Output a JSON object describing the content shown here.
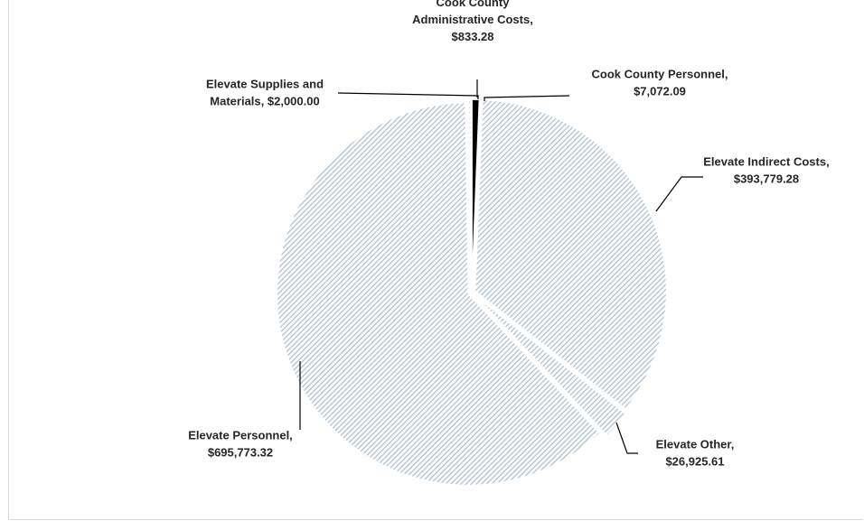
{
  "chart_data": {
    "type": "pie",
    "title": "",
    "slices": [
      {
        "label": "Cook County  Personnel",
        "value": 7072.09,
        "value_text": "$7,072.09",
        "color": "#000000"
      },
      {
        "label": "Elevate Indirect Costs",
        "value": 393779.28,
        "value_text": "$393,779.28",
        "color": "#a9bccd"
      },
      {
        "label": "Elevate Other",
        "value": 26925.61,
        "value_text": "$26,925.61",
        "color": "#a9bccd"
      },
      {
        "label": "Elevate Personnel",
        "value": 695773.32,
        "value_text": "$695,773.32",
        "color": "#a9bccd"
      },
      {
        "label": "Elevate Supplies and Materials",
        "value": 2000.0,
        "value_text": "$2,000.00",
        "color": "#a9bccd"
      },
      {
        "label": "Cook County Administrative Costs",
        "value": 833.28,
        "value_text": "$833.28",
        "color": "#000000"
      }
    ],
    "legend": "none",
    "pattern": "diagonal-hatch",
    "label_lines": [
      [
        "Cook County  Personnel,",
        "$7,072.09"
      ],
      [
        "Elevate Indirect Costs,",
        "$393,779.28"
      ],
      [
        "Elevate Other,",
        "$26,925.61"
      ],
      [
        "Elevate Personnel,",
        "$695,773.32"
      ],
      [
        "Elevate Supplies and",
        "Materials,  $2,000.00"
      ],
      [
        "Cook County",
        "Administrative Costs,",
        "$833.28"
      ]
    ]
  }
}
